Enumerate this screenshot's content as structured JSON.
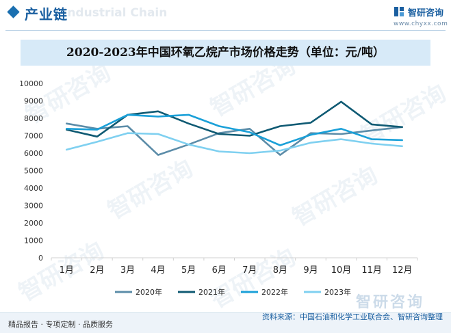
{
  "header": {
    "title": "产业链",
    "watermark_text": "Industrial Chain",
    "logo_text": "智研咨询",
    "logo_url": "www.chyxx.com"
  },
  "footer": {
    "left_text": "精品报告 · 专项定制 · 品质服务",
    "source_text": "资料来源：中国石油和化学工业联合会、智研咨询整理"
  },
  "watermark": {
    "text": "智研咨询"
  },
  "colors": {
    "brand": "#1a5fa0",
    "series_2020": "#5b8ca8",
    "series_2021": "#0f5a73",
    "series_2022": "#1aa0d8",
    "series_2023": "#7fd0f0"
  },
  "chart_data": {
    "type": "line",
    "title": "2020-2023年中国环氧乙烷产市场价格走势（单位：元/吨）",
    "categories": [
      "1月",
      "2月",
      "3月",
      "4月",
      "5月",
      "6月",
      "7月",
      "8月",
      "9月",
      "10月",
      "11月",
      "12月"
    ],
    "ylim": [
      0,
      10000
    ],
    "yticks": [
      0,
      1000,
      2000,
      3000,
      4000,
      5000,
      6000,
      7000,
      8000,
      9000,
      10000
    ],
    "grid": false,
    "legend_position": "bottom",
    "series": [
      {
        "name": "2020年",
        "color": "#5b8ca8",
        "values": [
          7700,
          7400,
          7550,
          5900,
          6500,
          7150,
          7400,
          5900,
          7150,
          7100,
          7300,
          7500
        ]
      },
      {
        "name": "2021年",
        "color": "#0f5a73",
        "values": [
          7350,
          6950,
          8200,
          8400,
          7700,
          7100,
          7000,
          7550,
          7750,
          8950,
          7650,
          7500
        ]
      },
      {
        "name": "2022年",
        "color": "#1aa0d8",
        "values": [
          7400,
          7350,
          8200,
          8100,
          8200,
          7550,
          7200,
          6450,
          7050,
          7400,
          6800,
          6750
        ]
      },
      {
        "name": "2023年",
        "color": "#7fd0f0",
        "values": [
          6200,
          6650,
          7150,
          7100,
          6500,
          6100,
          6000,
          6150,
          6600,
          6800,
          6550,
          6400
        ]
      }
    ]
  }
}
